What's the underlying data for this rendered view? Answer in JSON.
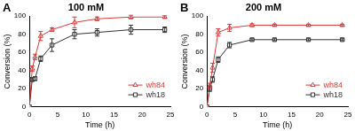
{
  "chart_data": [
    {
      "type": "line",
      "title": "100 mM",
      "annotation": "A",
      "x_label": "Time (h)",
      "y_label": "Conversion (%)",
      "x": [
        0,
        0.5,
        1,
        2,
        4,
        8,
        12,
        18,
        24
      ],
      "series": [
        {
          "name": "wh84",
          "color": "#e03a3a",
          "marker": "triangle",
          "values": [
            0,
            42,
            55,
            78,
            85,
            93,
            97,
            99,
            99
          ],
          "errors": [
            0,
            3,
            3,
            5,
            2,
            6,
            2,
            2,
            1.5
          ]
        },
        {
          "name": "wh18",
          "color": "#333333",
          "marker": "square",
          "values": [
            0,
            30,
            31,
            53,
            68,
            80,
            82,
            85,
            85
          ],
          "errors": [
            0,
            2,
            2,
            3,
            7,
            5,
            4,
            5,
            3
          ]
        }
      ],
      "xlim": [
        0,
        25
      ],
      "xticks": [
        0,
        5,
        10,
        15,
        20,
        25
      ],
      "ylim": [
        0,
        100
      ],
      "yticks": [
        0,
        20,
        40,
        60,
        80,
        100
      ],
      "grid": false,
      "legend": "lower right"
    },
    {
      "type": "line",
      "title": "200 mM",
      "annotation": "B",
      "x_label": "Time (h)",
      "y_label": "Conversion (%)",
      "x": [
        0,
        0.5,
        1,
        2,
        4,
        8,
        12,
        18,
        24
      ],
      "series": [
        {
          "name": "wh84",
          "color": "#e03a3a",
          "marker": "triangle",
          "values": [
            0,
            23,
            43,
            82,
            87,
            90,
            90,
            90,
            90
          ],
          "errors": [
            0,
            3,
            5,
            4,
            4,
            1.5,
            1,
            1,
            1
          ]
        },
        {
          "name": "wh18",
          "color": "#333333",
          "marker": "square",
          "values": [
            0,
            20,
            30,
            52,
            68,
            74,
            74,
            74,
            74
          ],
          "errors": [
            0,
            3,
            3,
            3,
            3,
            1,
            1,
            1,
            1
          ]
        }
      ],
      "xlim": [
        0,
        25
      ],
      "xticks": [
        0,
        5,
        10,
        15,
        20,
        25
      ],
      "ylim": [
        0,
        100
      ],
      "yticks": [
        0,
        20,
        40,
        60,
        80,
        100
      ],
      "grid": false,
      "legend": "lower right"
    }
  ]
}
